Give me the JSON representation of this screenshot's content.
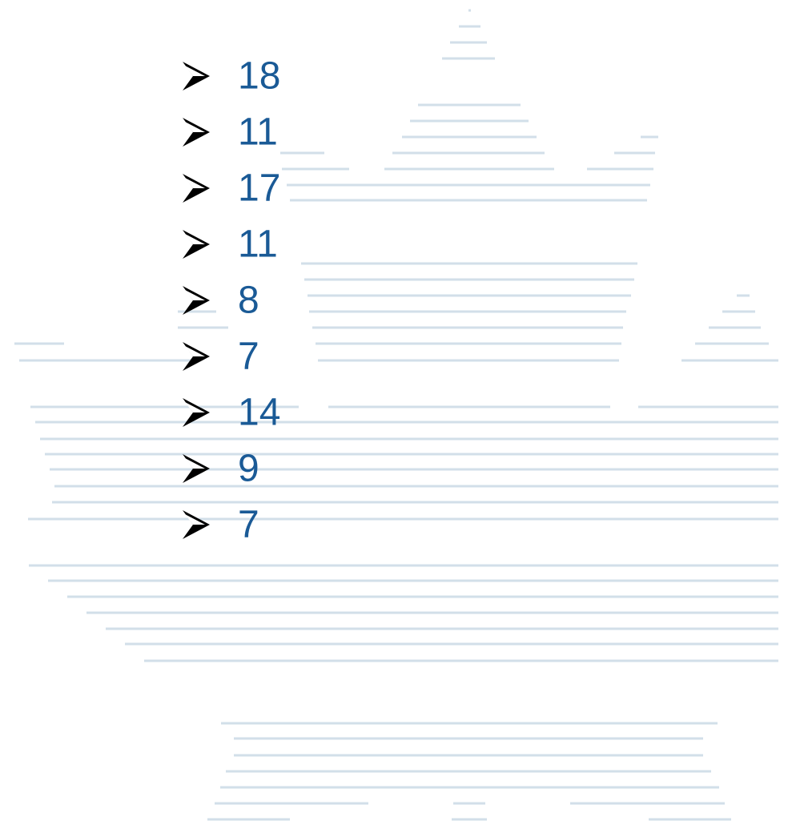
{
  "list": {
    "items": [
      18,
      11,
      17,
      11,
      8,
      7,
      14,
      9,
      7
    ]
  }
}
